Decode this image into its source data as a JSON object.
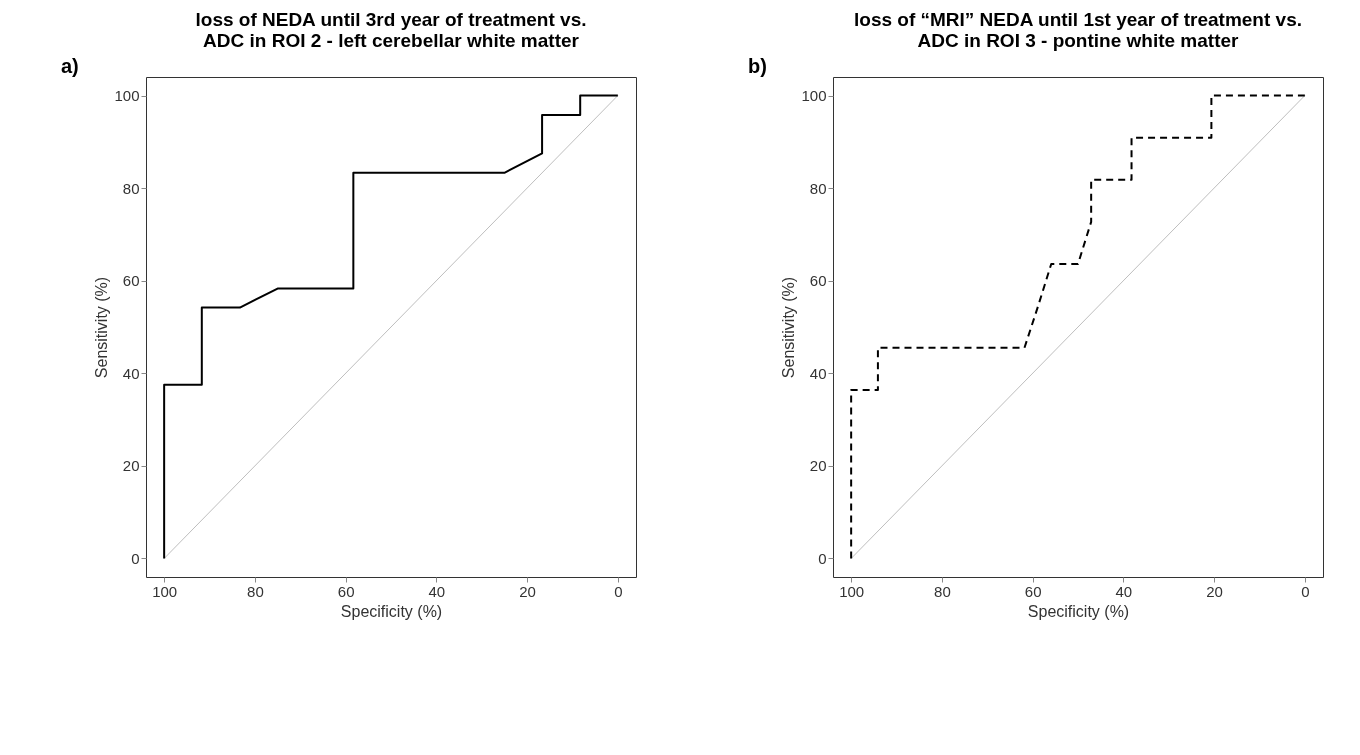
{
  "chart_data": [
    {
      "type": "line",
      "title": "loss of NEDA until 3rd year of treatment vs.\nADC in ROI 2 - left cerebellar white matter",
      "xlabel": "Specificity (%)",
      "ylabel": "Sensitivity (%)",
      "xlim": [
        104,
        -4
      ],
      "ylim": [
        -4,
        104
      ],
      "xticks": [
        100,
        80,
        60,
        40,
        20,
        0
      ],
      "yticks": [
        0,
        20,
        40,
        60,
        80,
        100
      ],
      "grid": false,
      "annotations": [
        "a)"
      ],
      "series": [
        {
          "color": "#bebebe",
          "x": [
            100,
            0
          ],
          "values": [
            0,
            100
          ],
          "line_style": "solid"
        },
        {
          "color": "#000000",
          "x": [
            100,
            100,
            91.7,
            91.7,
            83.3,
            75,
            58.3,
            58.3,
            25,
            16.7,
            16.7,
            8.3,
            8.3,
            0
          ],
          "values": [
            0,
            37.5,
            37.5,
            54.2,
            54.2,
            58.3,
            58.3,
            83.3,
            83.3,
            87.5,
            95.8,
            95.8,
            100,
            100
          ],
          "line_style": "solid"
        }
      ]
    },
    {
      "type": "line",
      "title": "loss of “MRI” NEDA until 1st year of treatment vs.\nADC in ROI 3 - pontine white matter",
      "xlabel": "Specificity (%)",
      "ylabel": "Sensitivity (%)",
      "xlim": [
        104,
        -4
      ],
      "ylim": [
        -4,
        104
      ],
      "xticks": [
        100,
        80,
        60,
        40,
        20,
        0
      ],
      "yticks": [
        0,
        20,
        40,
        60,
        80,
        100
      ],
      "grid": false,
      "annotations": [
        "b)"
      ],
      "series": [
        {
          "color": "#bebebe",
          "x": [
            100,
            0
          ],
          "values": [
            0,
            100
          ],
          "line_style": "solid"
        },
        {
          "color": "#000000",
          "x": [
            100,
            100,
            94.1,
            94.1,
            61.8,
            58.8,
            55.9,
            50,
            47.1,
            47.1,
            38.2,
            38.2,
            20.6,
            20.6,
            0
          ],
          "values": [
            0,
            36.4,
            36.4,
            45.5,
            45.5,
            54.5,
            63.6,
            63.6,
            72.7,
            81.8,
            81.8,
            90.9,
            90.9,
            100,
            100
          ],
          "line_style": "dashed"
        }
      ]
    }
  ]
}
